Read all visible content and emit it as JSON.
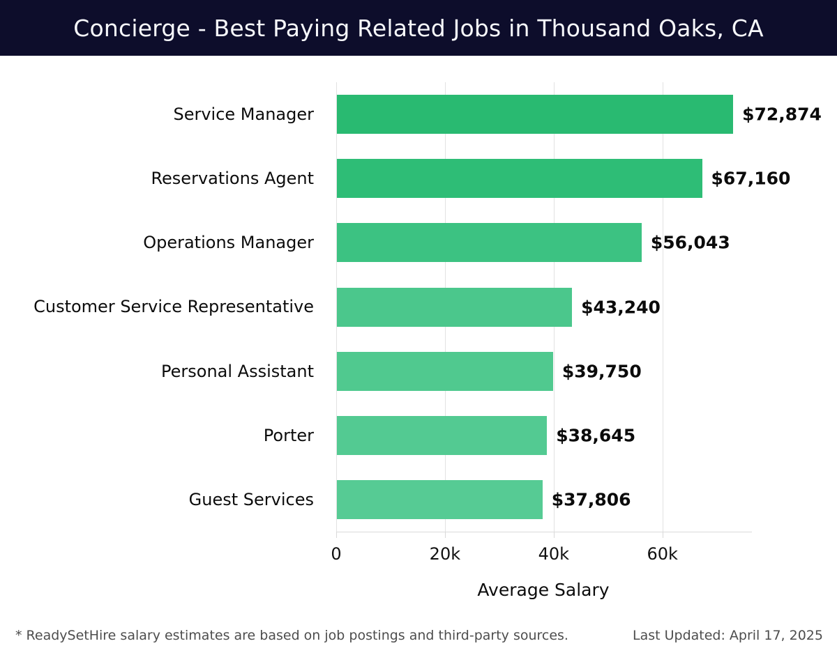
{
  "header": {
    "title": "Concierge - Best Paying Related Jobs in Thousand Oaks, CA",
    "background_color": "#0d0d2b",
    "title_color": "#f7f8fb"
  },
  "chart_data": {
    "type": "bar",
    "orientation": "horizontal",
    "title": "Concierge - Best Paying Related Jobs in Thousand Oaks, CA",
    "categories": [
      "Service Manager",
      "Reservations Agent",
      "Operations Manager",
      "Customer Service Representative",
      "Personal Assistant",
      "Porter",
      "Guest Services"
    ],
    "values": [
      72874,
      67160,
      56043,
      43240,
      39750,
      38645,
      37806
    ],
    "value_labels": [
      "$72,874",
      "$67,160",
      "$56,043",
      "$43,240",
      "$39,750",
      "$38,645",
      "$37,806"
    ],
    "bar_colors": [
      "#29ba71",
      "#2ebd76",
      "#3cc282",
      "#4bc78c",
      "#50c98f",
      "#53ca92",
      "#56cb94"
    ],
    "xlabel": "Average Salary",
    "ylabel": "",
    "xlim": [
      0,
      76200
    ],
    "xticks": {
      "values": [
        0,
        20000,
        40000,
        60000
      ],
      "labels": [
        "0",
        "20k",
        "40k",
        "60k"
      ]
    },
    "grid": "vertical-only",
    "legend": "none",
    "gridline_color": "#e2e2e2"
  },
  "footer": {
    "note": "* ReadySetHire salary estimates are based on job postings and third-party sources.",
    "last_updated": "Last Updated: April 17, 2025"
  }
}
